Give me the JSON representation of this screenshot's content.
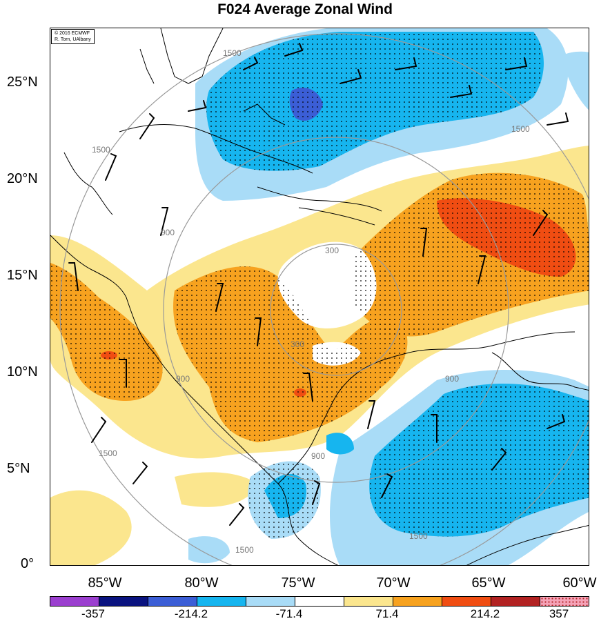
{
  "title": "F024 Average Zonal Wind",
  "credit": {
    "line1": "© 2016 ECMWF",
    "line2": "R. Torn, UAlbany"
  },
  "latitude_labels": [
    "25°N",
    "20°N",
    "15°N",
    "10°N",
    "5°N",
    "0°"
  ],
  "longitude_labels": [
    "85°W",
    "80°W",
    "75°W",
    "70°W",
    "65°W",
    "60°W"
  ],
  "range_ring_labels": [
    "300",
    "900",
    "1500"
  ],
  "colorbar": {
    "colors": [
      "#9b3fcf",
      "#0a1380",
      "#3b5ed6",
      "#16b5ef",
      "#a9dcf7",
      "#ffffff",
      "#fbe68e",
      "#f7a21f",
      "#f04d12",
      "#b22222",
      "#f5a3b8"
    ],
    "tick_labels": [
      "-357",
      "-214.2",
      "-71.4",
      "71.4",
      "214.2",
      "357"
    ]
  },
  "chart_data": {
    "type": "heatmap",
    "title": "F024 Average Zonal Wind",
    "x_ticks": [
      "85°W",
      "80°W",
      "75°W",
      "70°W",
      "65°W",
      "60°W"
    ],
    "y_ticks": [
      "0°",
      "5°N",
      "10°N",
      "15°N",
      "20°N",
      "25°N"
    ],
    "color_scale_ticks": [
      -357,
      -214.2,
      -71.4,
      71.4,
      214.2,
      357
    ],
    "range_rings": [
      300,
      900,
      1500
    ],
    "ring_center": {
      "lon": -73.5,
      "lat": 13.0
    },
    "stippling": true,
    "wind_barbs": true
  }
}
